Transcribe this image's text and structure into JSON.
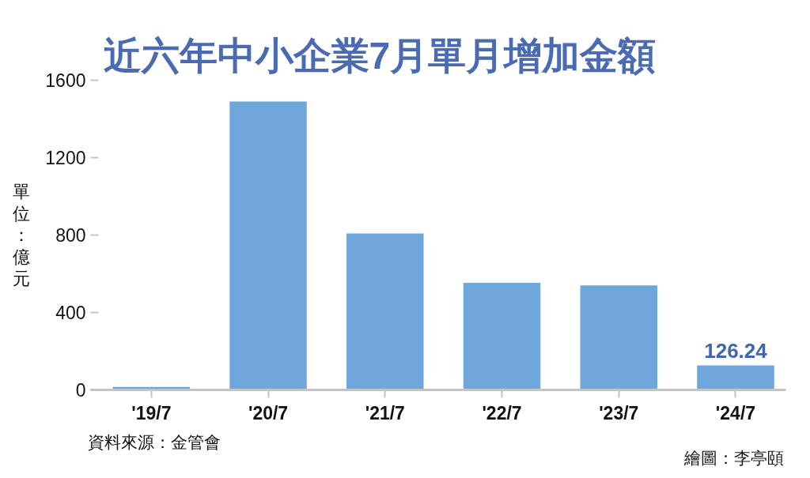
{
  "chart_data": {
    "type": "bar",
    "title": "近六年中小企業7月單月增加金額",
    "ylabel": "單位：億元",
    "categories": [
      "'19/7",
      "'20/7",
      "'21/7",
      "'22/7",
      "'23/7",
      "'24/7"
    ],
    "values": [
      15,
      1490,
      808,
      553,
      540,
      126.24
    ],
    "value_labels": [
      null,
      null,
      null,
      null,
      null,
      "126.24"
    ],
    "color": "#6fa6dc",
    "ylim": [
      0,
      1600
    ],
    "yticks": [
      0,
      400,
      800,
      1200,
      1600
    ],
    "annotations": [
      "資料來源：金管會",
      "繪圖：李亭頤"
    ]
  }
}
